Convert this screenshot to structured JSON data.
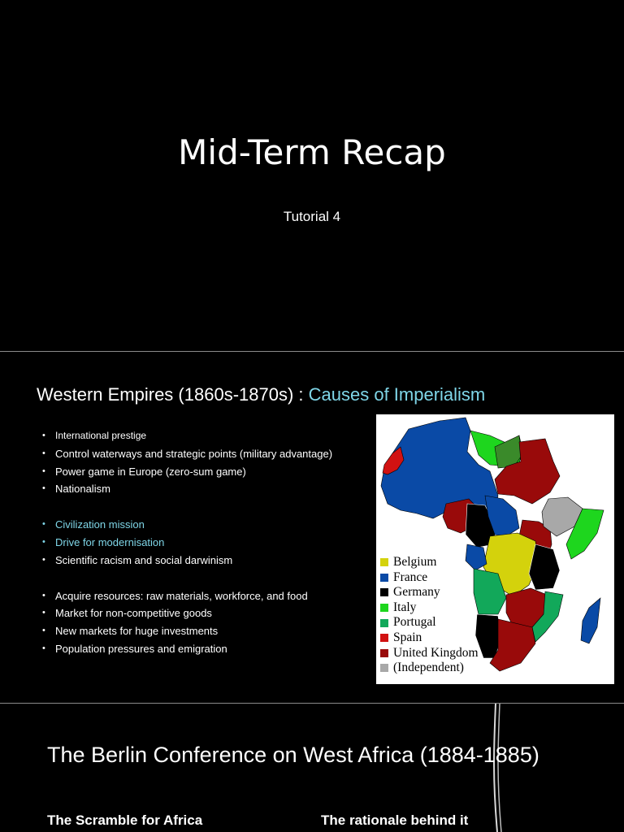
{
  "slide1": {
    "title": "Mid-Term Recap",
    "subtitle": "Tutorial 4"
  },
  "slide2": {
    "title_main": "Western Empires (1860s-1870s) : ",
    "title_accent": "Causes of Imperialism",
    "group1": [
      "International prestige",
      "Control waterways and strategic points (military advantage)",
      "Power game in Europe (zero-sum game)",
      "Nationalism"
    ],
    "group2": [
      "Civilization mission",
      "Drive for modernisation",
      "Scientific racism and social darwinism"
    ],
    "group3": [
      "Acquire resources: raw materials, workforce, and food",
      "Market for non-competitive goods",
      "New markets for huge investments",
      "Population pressures and emigration"
    ],
    "map_legend": [
      {
        "label": "Belgium",
        "color": "#d4d20c"
      },
      {
        "label": "France",
        "color": "#0a4aa6"
      },
      {
        "label": "Germany",
        "color": "#000000"
      },
      {
        "label": "Italy",
        "color": "#1ed61e"
      },
      {
        "label": "Portugal",
        "color": "#12a85a"
      },
      {
        "label": "Spain",
        "color": "#d11212"
      },
      {
        "label": "United Kingdom",
        "color": "#990a0a"
      },
      {
        "label": "(Independent)",
        "color": "#a8a8a8"
      }
    ]
  },
  "slide3": {
    "title": "The Berlin Conference on West Africa (1884-1885)",
    "left_heading": "The Scramble for Africa",
    "right_heading": "The rationale behind it"
  },
  "colors": {
    "background": "#000000",
    "accent_cyan": "#7fd6e8",
    "divider": "#8a8a8a"
  }
}
